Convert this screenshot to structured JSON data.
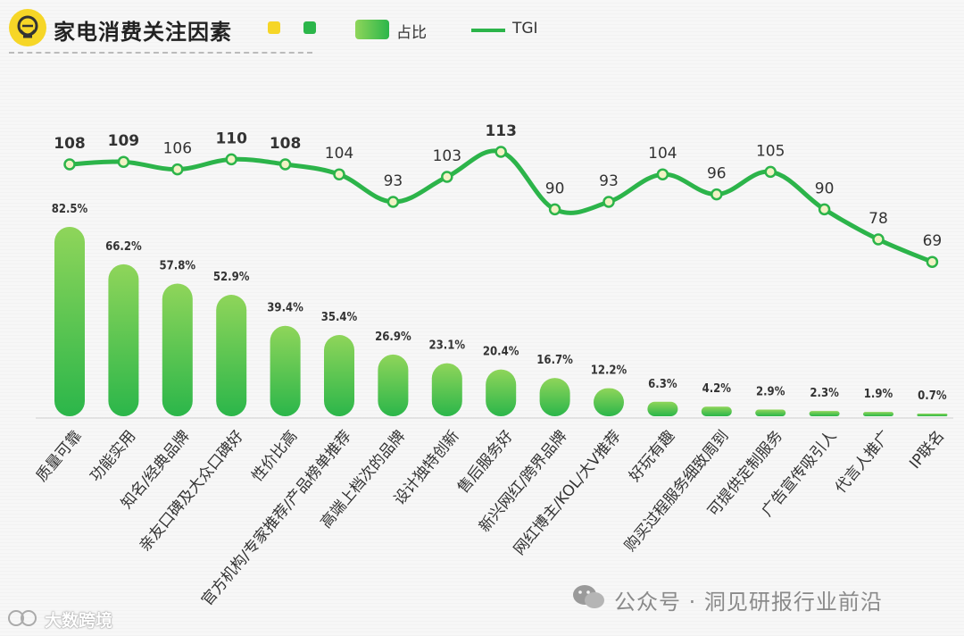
{
  "header": {
    "title": "家电消费关注因素",
    "legend": [
      {
        "label": "占比",
        "kind": "bar"
      },
      {
        "label": "TGI",
        "kind": "line"
      }
    ]
  },
  "colors": {
    "accent_yellow": "#f6d627",
    "bar_top": "#8fd55a",
    "bar_bottom": "#2bb64a",
    "line": "#2cb44a",
    "marker_fill": "#f2f2c4"
  },
  "chart_data": {
    "type": "bar+line",
    "title": "家电消费关注因素",
    "categories": [
      "质量可靠",
      "功能实用",
      "知名/经典品牌",
      "亲友口碑及大众口碑好",
      "性价比高",
      "官方机构/专家推荐/产品榜单推荐",
      "高端上档次的品牌",
      "设计独特创新",
      "售后服务好",
      "新兴网红/跨界品牌",
      "网红博主/KOL/大V推荐",
      "好玩有趣",
      "购买过程服务细致周到",
      "可提供定制服务",
      "广告宣传吸引人",
      "代言人推广",
      "IP联名"
    ],
    "series": [
      {
        "name": "占比",
        "type": "bar",
        "values": [
          82.5,
          66.2,
          57.8,
          52.9,
          39.4,
          35.4,
          26.9,
          23.1,
          20.4,
          16.7,
          12.2,
          6.3,
          4.2,
          2.9,
          2.3,
          1.9,
          0.7
        ],
        "labels": [
          "82.5%",
          "66.2%",
          "57.8%",
          "52.9%",
          "39.4%",
          "35.4%",
          "26.9%",
          "23.1%",
          "20.4%",
          "16.7%",
          "12.2%",
          "6.3%",
          "4.2%",
          "2.9%",
          "2.3%",
          "1.9%",
          "0.7%"
        ]
      },
      {
        "name": "TGI",
        "type": "line",
        "values": [
          108,
          109,
          106,
          110,
          108,
          104,
          93,
          103,
          113,
          90,
          93,
          104,
          96,
          105,
          90,
          78,
          69
        ],
        "labels": [
          "108",
          "109",
          "106",
          "110",
          "108",
          "104",
          "93",
          "103",
          "113",
          "90",
          "93",
          "104",
          "96",
          "105",
          "90",
          "78",
          "69"
        ]
      }
    ],
    "bold_tgi_labels": [
      "108",
      "109",
      "110",
      "113"
    ],
    "xlabel": "",
    "ylabel": "",
    "grid": false,
    "legend_position": "top"
  },
  "watermark": {
    "wechat_text": "公众号 · 洞见研报行业前沿",
    "source_text": "大数跨境"
  }
}
